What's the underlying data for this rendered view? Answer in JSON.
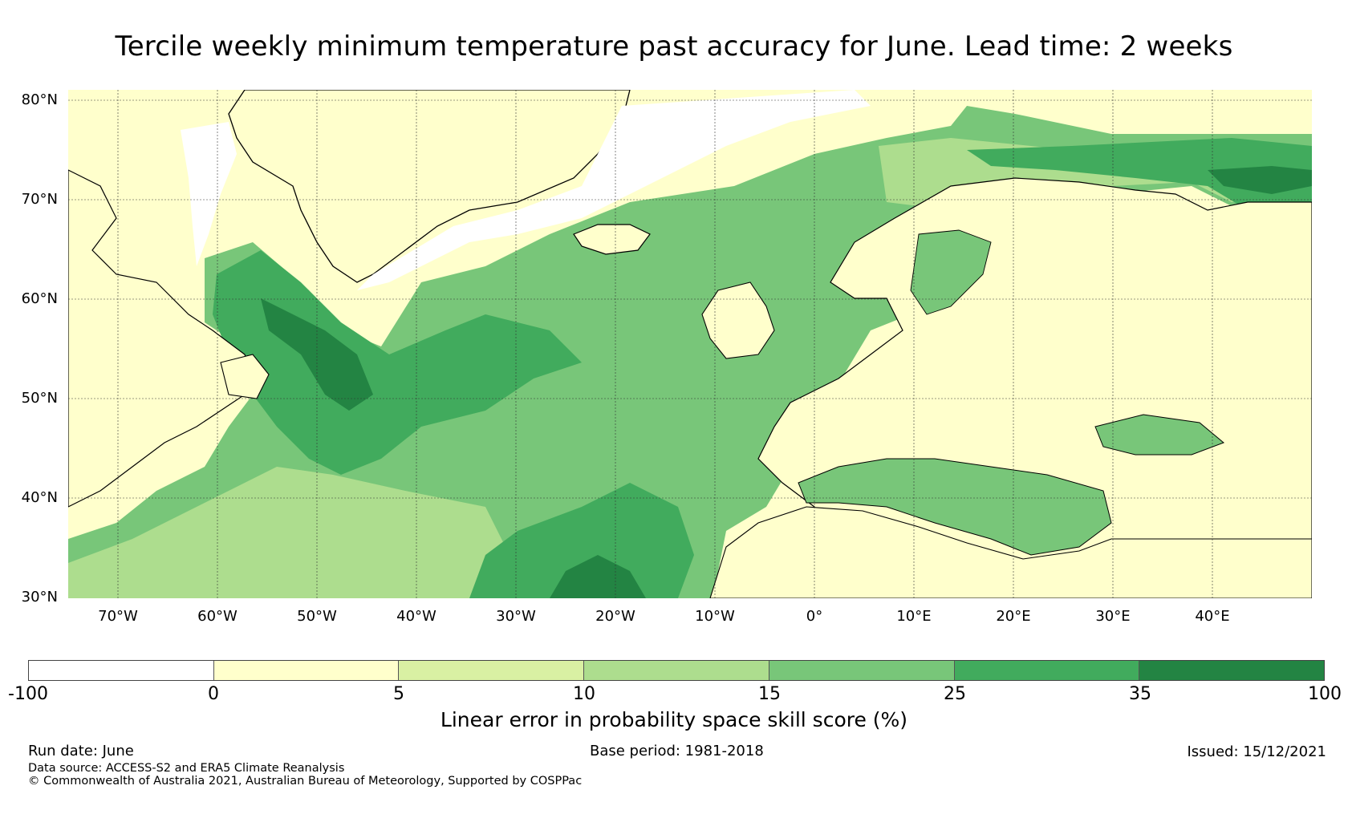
{
  "title": "Tercile weekly minimum temperature past accuracy for June. Lead time: 2 weeks",
  "map": {
    "lat_labels": [
      "80°N",
      "70°N",
      "60°N",
      "50°N",
      "40°N",
      "30°N"
    ],
    "lon_labels": [
      "70°W",
      "60°W",
      "50°W",
      "40°W",
      "30°W",
      "20°W",
      "10°W",
      "0°",
      "10°E",
      "20°E",
      "30°E",
      "40°E"
    ],
    "legend_colors": [
      "#ffffff",
      "#ffffcc",
      "#d9f0a3",
      "#addd8e",
      "#78c679",
      "#41ab5d",
      "#238443"
    ],
    "ocean_color": "#8ccf7e",
    "land_color": "#ffffcc"
  },
  "colorbar": {
    "ticks": [
      "-100",
      "0",
      "5",
      "10",
      "15",
      "25",
      "35",
      "100"
    ],
    "label": "Linear error in probability space skill score (%)"
  },
  "footer": {
    "run_date": "Run date: June",
    "base_period": "Base period: 1981-2018",
    "issued": "Issued: 15/12/2021",
    "data_source": "Data source: ACCESS-S2 and ERA5 Climate Reanalysis",
    "copyright": "© Commonwealth of Australia 2021, Australian Bureau of Meteorology, Supported by COSPPac"
  }
}
